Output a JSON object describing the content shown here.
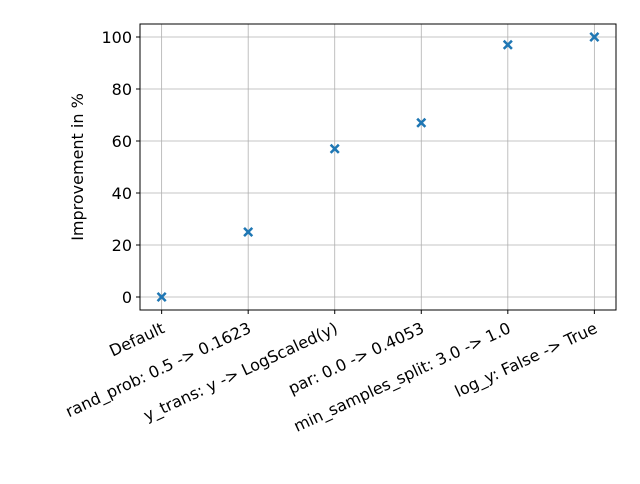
{
  "chart_data": {
    "type": "scatter",
    "ylabel": "Improvement in %",
    "categories": [
      "Default",
      "rand_prob: 0.5 -> 0.1623",
      "y_trans: y -> LogScaled(y)",
      "par: 0.0 -> 0.4053",
      "min_samples_split: 3.0 -> 1.0",
      "log_y: False -> True"
    ],
    "values": [
      0,
      25,
      57,
      67,
      97,
      100
    ],
    "color": "#1f77b4",
    "marker": "X",
    "ylim": [
      -5,
      105
    ],
    "yticks": [
      0,
      20,
      40,
      60,
      80,
      100
    ],
    "grid": true
  }
}
